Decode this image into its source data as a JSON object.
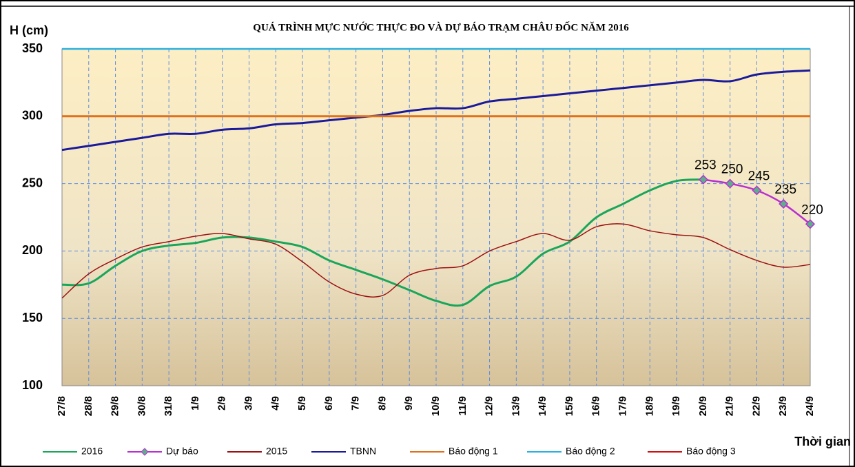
{
  "chart_data": {
    "type": "line",
    "title": "QUÁ TRÌNH MỰC NƯỚC THỰC ĐO VÀ DỰ BÁO TRẠM CHÂU ĐỐC NĂM 2016",
    "y_label": "H (cm)",
    "x_label": "Thời gian",
    "categories": [
      "27/8",
      "28/8",
      "29/8",
      "30/8",
      "31/8",
      "1/9",
      "2/9",
      "3/9",
      "4/9",
      "5/9",
      "6/9",
      "7/9",
      "8/9",
      "9/9",
      "10/9",
      "11/9",
      "12/9",
      "13/9",
      "14/9",
      "15/9",
      "16/9",
      "17/9",
      "18/9",
      "19/9",
      "20/9",
      "21/9",
      "22/9",
      "23/9",
      "24/9"
    ],
    "ylim": [
      100,
      350
    ],
    "yticks": [
      100,
      150,
      200,
      250,
      300,
      350
    ],
    "grid": true,
    "series": [
      {
        "name": "2016",
        "color": "#1aa65a",
        "values": [
          175,
          176,
          189,
          200,
          204,
          206,
          210,
          210,
          207,
          203,
          193,
          186,
          179,
          171,
          163,
          160,
          174,
          181,
          198,
          207,
          225,
          235,
          245,
          252,
          253,
          null,
          null,
          null,
          null
        ]
      },
      {
        "name": "Dự báo",
        "color": "#b92fd0",
        "marker": true,
        "data_labels": true,
        "values": [
          null,
          null,
          null,
          null,
          null,
          null,
          null,
          null,
          null,
          null,
          null,
          null,
          null,
          null,
          null,
          null,
          null,
          null,
          null,
          null,
          null,
          null,
          null,
          null,
          253,
          250,
          245,
          235,
          220
        ]
      },
      {
        "name": "2015",
        "color": "#9b1111",
        "values": [
          165,
          183,
          194,
          203,
          207,
          211,
          213,
          209,
          205,
          192,
          177,
          168,
          167,
          182,
          187,
          189,
          200,
          207,
          213,
          208,
          218,
          220,
          215,
          212,
          210,
          201,
          193,
          188,
          190
        ]
      },
      {
        "name": "TBNN",
        "color": "#1a1a9a",
        "values": [
          275,
          278,
          281,
          284,
          287,
          287,
          290,
          291,
          294,
          295,
          297,
          299,
          301,
          304,
          306,
          306,
          311,
          313,
          315,
          317,
          319,
          321,
          323,
          325,
          327,
          326,
          331,
          333,
          334
        ]
      },
      {
        "name": "Báo động 1",
        "color": "#e0701a",
        "values": [
          300,
          300,
          300,
          300,
          300,
          300,
          300,
          300,
          300,
          300,
          300,
          300,
          300,
          300,
          300,
          300,
          300,
          300,
          300,
          300,
          300,
          300,
          300,
          300,
          300,
          300,
          300,
          300,
          300
        ]
      },
      {
        "name": "Báo động 2",
        "color": "#2ab0e0",
        "values": [
          350,
          350,
          350,
          350,
          350,
          350,
          350,
          350,
          350,
          350,
          350,
          350,
          350,
          350,
          350,
          350,
          350,
          350,
          350,
          350,
          350,
          350,
          350,
          350,
          350,
          350,
          350,
          350,
          350
        ]
      },
      {
        "name": "Báo động 3",
        "color": "#d01010",
        "values": [
          null,
          null,
          null,
          null,
          null,
          null,
          null,
          null,
          null,
          null,
          null,
          null,
          null,
          null,
          null,
          null,
          null,
          null,
          null,
          null,
          null,
          null,
          null,
          null,
          null,
          null,
          null,
          null,
          null
        ]
      }
    ]
  }
}
